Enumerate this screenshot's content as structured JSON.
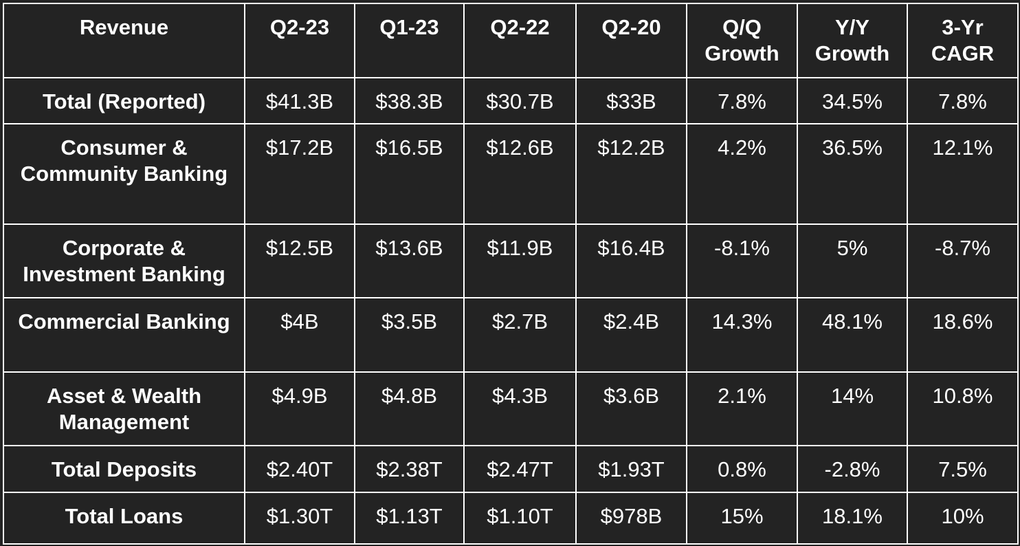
{
  "headers": [
    "Revenue",
    "Q2-23",
    "Q1-23",
    "Q2-22",
    "Q2-20",
    "Q/Q Growth",
    "Y/Y Growth",
    "3-Yr CAGR"
  ],
  "rows": [
    [
      "Total (Reported)",
      "$41.3B",
      "$38.3B",
      "$30.7B",
      "$33B",
      "7.8%",
      "34.5%",
      "7.8%"
    ],
    [
      "Consumer & Community Banking",
      "$17.2B",
      "$16.5B",
      "$12.6B",
      "$12.2B",
      "4.2%",
      "36.5%",
      "12.1%"
    ],
    [
      "Corporate & Investment Banking",
      "$12.5B",
      "$13.6B",
      "$11.9B",
      "$16.4B",
      "-8.1%",
      "5%",
      "-8.7%"
    ],
    [
      "Commercial Banking",
      "$4B",
      "$3.5B",
      "$2.7B",
      "$2.4B",
      "14.3%",
      "48.1%",
      "18.6%"
    ],
    [
      "Asset & Wealth Management",
      "$4.9B",
      "$4.8B",
      "$4.3B",
      "$3.6B",
      "2.1%",
      "14%",
      "10.8%"
    ],
    [
      "Total Deposits",
      "$2.40T",
      "$2.38T",
      "$2.47T",
      "$1.93T",
      "0.8%",
      "-2.8%",
      "7.5%"
    ],
    [
      "Total Loans",
      "$1.30T",
      "$1.13T",
      "$1.10T",
      "$978B",
      "15%",
      "18.1%",
      "10%"
    ]
  ],
  "colors": {
    "background": "#232323",
    "text": "#ffffff",
    "border": "#ffffff"
  }
}
